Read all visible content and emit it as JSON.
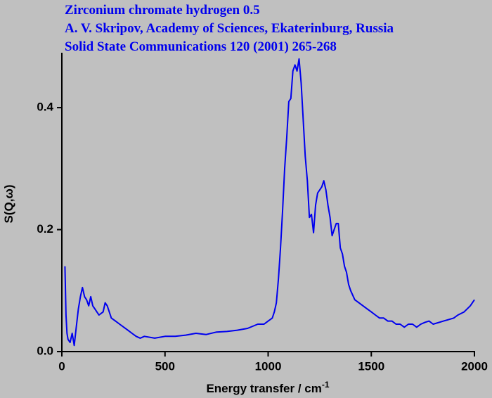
{
  "chart_data": {
    "type": "line",
    "title_lines": [
      "Zirconium chromate hydrogen 0.5",
      "A. V. Skripov, Academy of Sciences, Ekaterinburg, Russia",
      "Solid State Communications 120 (2001) 265-268"
    ],
    "x_label": "Energy transfer / cm",
    "x_label_sup": "-1",
    "y_label": "S(Q,ω)",
    "xlim": [
      0,
      2000
    ],
    "ylim": [
      0,
      0.49
    ],
    "xticks": [
      0,
      500,
      1000,
      1500,
      2000
    ],
    "yticks": [
      {
        "value": 0,
        "label": "0.0"
      },
      {
        "value": 0.2,
        "label": "0.2"
      },
      {
        "value": 0.4,
        "label": "0.4"
      }
    ],
    "series": [
      {
        "name": "S(Q,ω)",
        "color": "#0000ee",
        "x": [
          15,
          20,
          25,
          30,
          40,
          50,
          60,
          70,
          80,
          90,
          100,
          110,
          120,
          130,
          140,
          150,
          160,
          180,
          200,
          210,
          220,
          240,
          260,
          280,
          300,
          320,
          340,
          360,
          380,
          400,
          450,
          500,
          550,
          600,
          650,
          700,
          750,
          800,
          850,
          900,
          950,
          980,
          1000,
          1020,
          1030,
          1040,
          1050,
          1060,
          1070,
          1080,
          1090,
          1100,
          1110,
          1120,
          1130,
          1140,
          1150,
          1160,
          1170,
          1180,
          1190,
          1200,
          1210,
          1220,
          1230,
          1240,
          1260,
          1270,
          1280,
          1290,
          1300,
          1310,
          1320,
          1330,
          1340,
          1350,
          1360,
          1370,
          1380,
          1390,
          1400,
          1420,
          1440,
          1460,
          1480,
          1500,
          1520,
          1540,
          1560,
          1580,
          1600,
          1620,
          1640,
          1660,
          1680,
          1700,
          1720,
          1740,
          1760,
          1780,
          1800,
          1850,
          1900,
          1920,
          1950,
          1980,
          2000
        ],
        "values": [
          0.14,
          0.06,
          0.03,
          0.02,
          0.015,
          0.03,
          0.01,
          0.04,
          0.07,
          0.09,
          0.105,
          0.09,
          0.085,
          0.075,
          0.09,
          0.075,
          0.07,
          0.06,
          0.065,
          0.08,
          0.075,
          0.055,
          0.05,
          0.045,
          0.04,
          0.035,
          0.03,
          0.025,
          0.022,
          0.025,
          0.022,
          0.025,
          0.025,
          0.027,
          0.03,
          0.028,
          0.032,
          0.033,
          0.035,
          0.038,
          0.045,
          0.045,
          0.05,
          0.055,
          0.065,
          0.08,
          0.12,
          0.17,
          0.23,
          0.3,
          0.35,
          0.41,
          0.415,
          0.46,
          0.47,
          0.46,
          0.48,
          0.44,
          0.38,
          0.32,
          0.28,
          0.22,
          0.225,
          0.195,
          0.24,
          0.26,
          0.27,
          0.28,
          0.265,
          0.24,
          0.22,
          0.19,
          0.2,
          0.21,
          0.21,
          0.17,
          0.16,
          0.14,
          0.13,
          0.11,
          0.1,
          0.085,
          0.08,
          0.075,
          0.07,
          0.065,
          0.06,
          0.055,
          0.055,
          0.05,
          0.05,
          0.045,
          0.045,
          0.04,
          0.045,
          0.045,
          0.04,
          0.045,
          0.048,
          0.05,
          0.045,
          0.05,
          0.055,
          0.06,
          0.065,
          0.075,
          0.085
        ]
      }
    ]
  }
}
